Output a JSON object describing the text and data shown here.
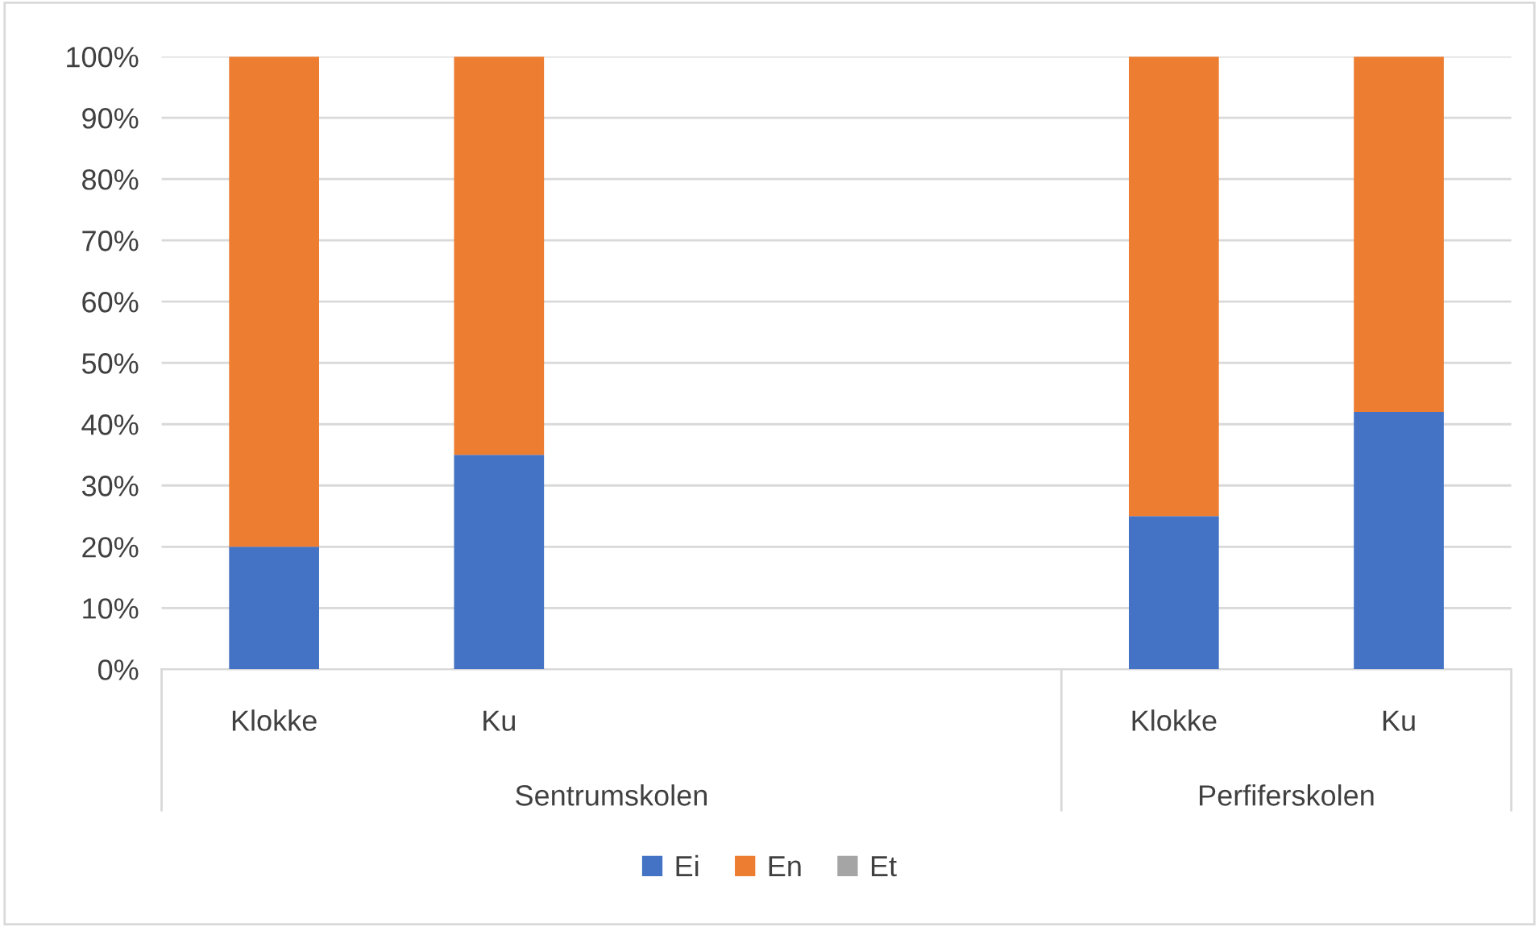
{
  "chart_data": {
    "type": "bar",
    "stacked": true,
    "categories": [
      "Klokke",
      "Ku",
      null,
      null,
      "Klokke",
      "Ku"
    ],
    "series": [
      {
        "name": "Ei",
        "color": "#4472c4",
        "values": [
          20,
          35,
          null,
          null,
          25,
          42
        ]
      },
      {
        "name": "En",
        "color": "#ed7d31",
        "values": [
          80,
          65,
          null,
          null,
          75,
          58
        ]
      },
      {
        "name": "Et",
        "color": "#a5a5a5",
        "values": [
          null,
          null,
          null,
          null,
          null,
          null
        ]
      }
    ],
    "annotations": [
      "Sentrumskolen",
      "Perfiferskolen"
    ],
    "ylim": [
      0,
      100
    ],
    "yticks": [
      {
        "value": 0,
        "label": "0%"
      },
      {
        "value": 10,
        "label": "10%"
      },
      {
        "value": 20,
        "label": "20%"
      },
      {
        "value": 30,
        "label": "30%"
      },
      {
        "value": 40,
        "label": "40%"
      },
      {
        "value": 50,
        "label": "50%"
      },
      {
        "value": 60,
        "label": "60%"
      },
      {
        "value": 70,
        "label": "70%"
      },
      {
        "value": 80,
        "label": "80%"
      },
      {
        "value": 90,
        "label": "90%"
      },
      {
        "value": 100,
        "label": "100%"
      }
    ],
    "grid": "y",
    "legend": "bottom"
  }
}
